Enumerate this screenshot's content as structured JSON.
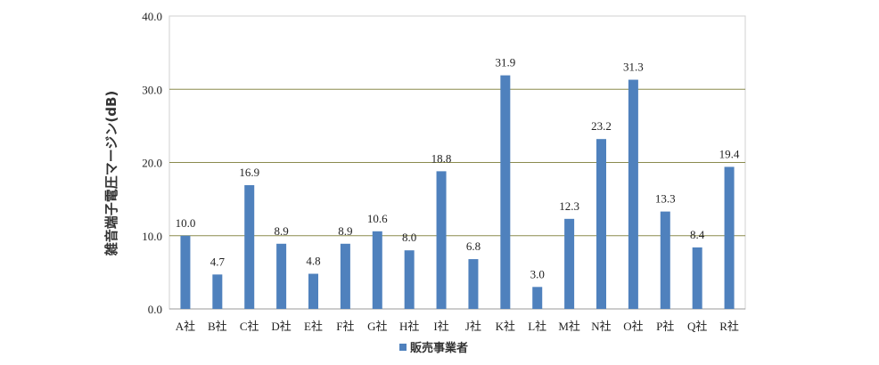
{
  "chart_data": {
    "type": "bar",
    "categories": [
      "A社",
      "B社",
      "C社",
      "D社",
      "E社",
      "F社",
      "G社",
      "H社",
      "I社",
      "J社",
      "K社",
      "L社",
      "M社",
      "N社",
      "O社",
      "P社",
      "Q社",
      "R社"
    ],
    "series": [
      {
        "name": "販売事業者",
        "values": [
          10.0,
          4.7,
          16.9,
          8.9,
          4.8,
          8.9,
          10.6,
          8.0,
          18.8,
          6.8,
          31.9,
          3.0,
          12.3,
          23.2,
          31.3,
          13.3,
          8.4,
          19.4
        ]
      }
    ],
    "value_labels": [
      "10.0",
      "4.7",
      "16.9",
      "8.9",
      "4.8",
      "8.9",
      "10.6",
      "8.0",
      "18.8",
      "6.8",
      "31.9",
      "3.0",
      "12.3",
      "23.2",
      "31.3",
      "13.3",
      "8.4",
      "19.4"
    ],
    "ylabel": "雑音端子電圧マージン(dB)",
    "xlabel": "",
    "ylim": [
      0,
      40
    ],
    "yticks": [
      "0.0",
      "10.0",
      "20.0",
      "30.0",
      "40.0"
    ],
    "ytick_values": [
      0,
      10,
      20,
      30,
      40
    ],
    "grid": true,
    "legend_position": "bottom",
    "bar_color": "#4f81bd",
    "grid_color": "#8b8b4e",
    "border_color": "#d0d0d0"
  }
}
